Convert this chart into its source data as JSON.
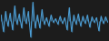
{
  "values": [
    1.5,
    -3.0,
    2.5,
    -1.5,
    2.0,
    -2.5,
    4.0,
    -1.0,
    1.8,
    -2.0,
    3.5,
    -0.8,
    2.5,
    -4.5,
    5.0,
    -2.0,
    1.5,
    -2.0,
    3.0,
    -1.0,
    0.8,
    -1.5,
    1.5,
    -0.5,
    0.5,
    -1.0,
    1.2,
    -0.8,
    0.8,
    -2.5,
    3.5,
    -3.0,
    1.5,
    -1.0,
    1.8,
    -1.5,
    1.2,
    -0.8,
    1.5,
    -1.8,
    1.0,
    -0.5,
    0.8,
    -2.8,
    1.2,
    -0.8,
    1.0,
    -0.5
  ],
  "line_color": "#4d9fd6",
  "fill_color": "#4d9fd6",
  "background_color": "#1c1c1c",
  "linewidth": 0.7,
  "fill_alpha": 0.6
}
